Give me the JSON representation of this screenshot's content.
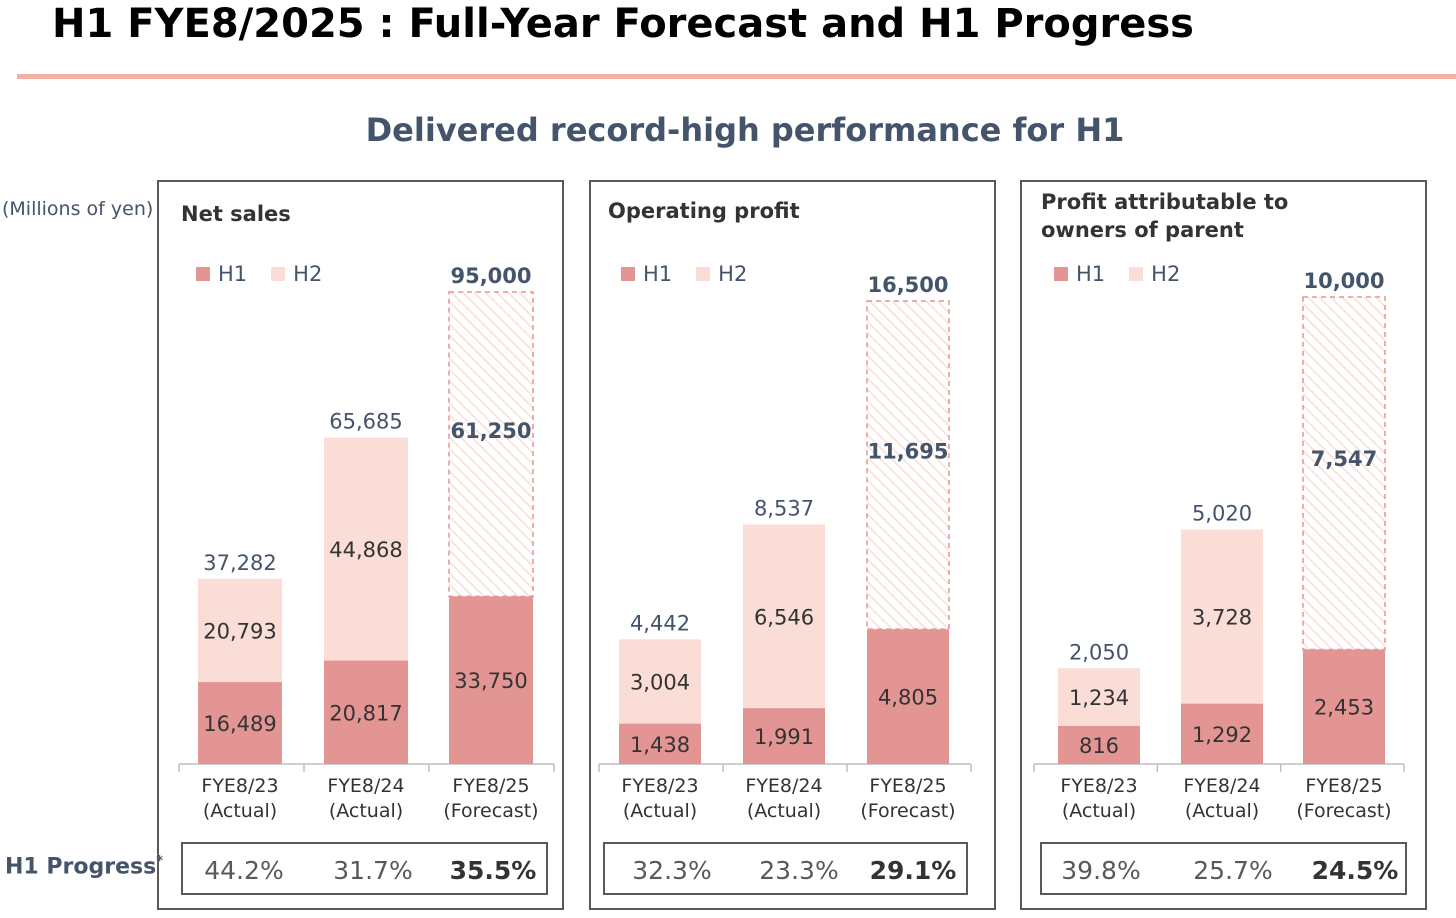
{
  "page": {
    "title": "H1 FYE8/2025 : Full-Year Forecast and H1 Progress",
    "subtitle": "Delivered record-high performance for H1",
    "units": "(Millions of yen)",
    "progress_label": "H1 Progress",
    "progress_mark": "*",
    "colors": {
      "h1": "#e39594",
      "h2": "#f9ddd6",
      "forecast_outline": "#e39594",
      "total_label": "#44546a",
      "rule": "#f4b0a3"
    }
  },
  "chart_data": [
    {
      "type": "bar",
      "stacked": true,
      "title": "Net sales",
      "legend": [
        "H1",
        "H2"
      ],
      "categories": [
        [
          "FYE8/23",
          "(Actual)"
        ],
        [
          "FYE8/24",
          "(Actual)"
        ],
        [
          "FYE8/25",
          "(Forecast)"
        ]
      ],
      "series": [
        {
          "name": "H1",
          "values": [
            16489,
            20817,
            33750
          ]
        },
        {
          "name": "H2",
          "values": [
            20793,
            44868,
            61250
          ]
        }
      ],
      "totals": [
        37282,
        65685,
        95000
      ],
      "value_labels": {
        "H1": [
          "16,489",
          "20,817",
          "33,750"
        ],
        "H2": [
          "20,793",
          "44,868",
          "61,250"
        ],
        "totals": [
          "37,282",
          "65,685",
          "95,000"
        ]
      },
      "forecast_index": 2,
      "ylim": [
        0,
        95000
      ],
      "h1_progress": [
        "44.2%",
        "31.7%",
        "35.5%"
      ]
    },
    {
      "type": "bar",
      "stacked": true,
      "title": "Operating profit",
      "legend": [
        "H1",
        "H2"
      ],
      "categories": [
        [
          "FYE8/23",
          "(Actual)"
        ],
        [
          "FYE8/24",
          "(Actual)"
        ],
        [
          "FYE8/25",
          "(Forecast)"
        ]
      ],
      "series": [
        {
          "name": "H1",
          "values": [
            1438,
            1991,
            4805
          ]
        },
        {
          "name": "H2",
          "values": [
            3004,
            6546,
            11695
          ]
        }
      ],
      "totals": [
        4442,
        8537,
        16500
      ],
      "value_labels": {
        "H1": [
          "1,438",
          "1,991",
          "4,805"
        ],
        "H2": [
          "3,004",
          "6,546",
          "11,695"
        ],
        "totals": [
          "4,442",
          "8,537",
          "16,500"
        ]
      },
      "forecast_index": 2,
      "ylim": [
        0,
        16500
      ],
      "h1_progress": [
        "32.3%",
        "23.3%",
        "29.1%"
      ]
    },
    {
      "type": "bar",
      "stacked": true,
      "title": "Profit attributable to owners of parent",
      "title_lines": [
        "Profit attributable to",
        "owners of parent"
      ],
      "legend": [
        "H1",
        "H2"
      ],
      "categories": [
        [
          "FYE8/23",
          "(Actual)"
        ],
        [
          "FYE8/24",
          "(Actual)"
        ],
        [
          "FYE8/25",
          "(Forecast)"
        ]
      ],
      "series": [
        {
          "name": "H1",
          "values": [
            816,
            1292,
            2453
          ]
        },
        {
          "name": "H2",
          "values": [
            1234,
            3728,
            7547
          ]
        }
      ],
      "totals": [
        2050,
        5020,
        10000
      ],
      "value_labels": {
        "H1": [
          "816",
          "1,292",
          "2,453"
        ],
        "H2": [
          "1,234",
          "3,728",
          "7,547"
        ],
        "totals": [
          "2,050",
          "5,020",
          "10,000"
        ]
      },
      "forecast_index": 2,
      "ylim": [
        0,
        10000
      ],
      "h1_progress": [
        "39.8%",
        "25.7%",
        "24.5%"
      ]
    }
  ]
}
